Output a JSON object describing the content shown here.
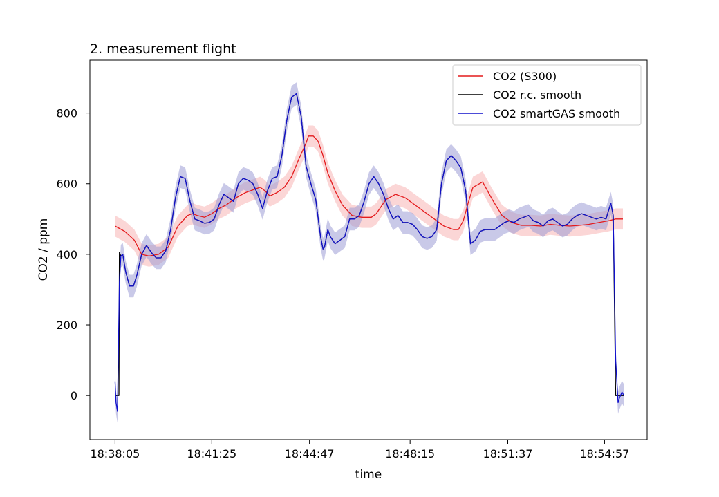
{
  "chart_data": {
    "type": "line",
    "title": "2. measurement flight",
    "xlabel": "time",
    "ylabel": "CO2 / ppm",
    "x_ticks": [
      "18:38:05",
      "18:41:25",
      "18:44:47",
      "18:48:15",
      "18:51:37",
      "18:54:57"
    ],
    "x_tick_seconds": [
      0,
      200,
      402,
      610,
      812,
      1012
    ],
    "xlim": [
      -52,
      1100
    ],
    "y_ticks": [
      0,
      200,
      400,
      600,
      800
    ],
    "ylim": [
      -125,
      950
    ],
    "grid": false,
    "legend_position": "top-right",
    "legend": [
      "CO2 (S300)",
      "CO2 r.c. smooth",
      "CO2 smartGAS smooth"
    ],
    "x_unit_note": "x values are seconds after 18:38:05",
    "series": [
      {
        "name": "CO2 (S300)",
        "color": "#e41a1c",
        "band_color": "#f8b4b4",
        "band_halfwidth": 30,
        "x": [
          0,
          20,
          40,
          55,
          70,
          90,
          110,
          130,
          150,
          160,
          170,
          185,
          200,
          215,
          230,
          250,
          270,
          290,
          300,
          310,
          320,
          335,
          350,
          365,
          380,
          395,
          400,
          410,
          420,
          430,
          440,
          455,
          470,
          490,
          510,
          530,
          540,
          550,
          560,
          580,
          600,
          610,
          620,
          640,
          660,
          680,
          700,
          710,
          720,
          730,
          740,
          760,
          780,
          800,
          820,
          840,
          860,
          880,
          900,
          920,
          940,
          960,
          980,
          1000,
          1020,
          1035,
          1050
        ],
        "values": [
          480,
          465,
          440,
          400,
          395,
          400,
          420,
          480,
          510,
          515,
          510,
          505,
          515,
          530,
          540,
          560,
          575,
          585,
          590,
          580,
          565,
          575,
          590,
          620,
          670,
          715,
          735,
          735,
          720,
          680,
          630,
          580,
          540,
          510,
          505,
          505,
          515,
          535,
          555,
          570,
          560,
          550,
          540,
          520,
          500,
          480,
          470,
          470,
          495,
          545,
          590,
          605,
          555,
          510,
          490,
          482,
          482,
          480,
          485,
          482,
          480,
          482,
          485,
          490,
          495,
          500,
          500
        ]
      },
      {
        "name": "CO2 r.c. smooth",
        "color": "#000000",
        "band_color": null,
        "band_halfwidth": 0,
        "x": [
          0,
          2,
          8,
          9,
          12,
          16,
          22,
          30,
          38,
          45,
          55,
          65,
          75,
          85,
          95,
          105,
          115,
          125,
          135,
          145,
          155,
          165,
          175,
          185,
          195,
          205,
          215,
          225,
          235,
          245,
          255,
          265,
          275,
          285,
          295,
          305,
          315,
          325,
          335,
          345,
          355,
          365,
          375,
          385,
          395,
          405,
          415,
          425,
          430,
          433,
          440,
          445,
          455,
          465,
          475,
          485,
          495,
          505,
          515,
          525,
          535,
          545,
          555,
          565,
          575,
          585,
          595,
          605,
          615,
          625,
          635,
          645,
          655,
          665,
          675,
          685,
          695,
          705,
          715,
          725,
          735,
          745,
          755,
          765,
          775,
          785,
          795,
          805,
          815,
          825,
          835,
          845,
          855,
          865,
          875,
          885,
          895,
          905,
          915,
          925,
          935,
          945,
          955,
          965,
          975,
          985,
          995,
          1005,
          1015,
          1025,
          1030,
          1035,
          1040,
          1042,
          1045,
          1048,
          1052
        ],
        "values": [
          0,
          0,
          0,
          405,
          395,
          400,
          350,
          310,
          310,
          340,
          400,
          425,
          405,
          390,
          390,
          410,
          470,
          560,
          620,
          615,
          550,
          500,
          495,
          488,
          490,
          500,
          540,
          570,
          560,
          550,
          600,
          615,
          610,
          600,
          570,
          530,
          580,
          615,
          620,
          680,
          780,
          845,
          855,
          790,
          650,
          600,
          555,
          450,
          415,
          420,
          470,
          450,
          430,
          440,
          450,
          500,
          500,
          510,
          550,
          600,
          620,
          600,
          570,
          530,
          500,
          510,
          490,
          490,
          485,
          470,
          450,
          445,
          450,
          470,
          600,
          665,
          680,
          665,
          645,
          580,
          430,
          440,
          465,
          470,
          470,
          470,
          480,
          490,
          495,
          490,
          500,
          505,
          510,
          495,
          490,
          480,
          495,
          500,
          490,
          480,
          485,
          500,
          510,
          515,
          510,
          505,
          500,
          505,
          500,
          545,
          510,
          0,
          0,
          0,
          0,
          0,
          0
        ]
      },
      {
        "name": "CO2 smartGAS smooth",
        "color": "#1010cc",
        "band_color": "#9d9dd6",
        "band_halfwidth": 32,
        "x": [
          0,
          2,
          5,
          9,
          12,
          16,
          22,
          30,
          38,
          45,
          55,
          65,
          75,
          85,
          95,
          105,
          115,
          125,
          135,
          145,
          155,
          165,
          175,
          185,
          195,
          205,
          215,
          225,
          235,
          245,
          255,
          265,
          275,
          285,
          295,
          305,
          315,
          325,
          335,
          345,
          355,
          365,
          375,
          385,
          395,
          405,
          415,
          425,
          430,
          433,
          440,
          445,
          455,
          465,
          475,
          485,
          495,
          505,
          515,
          525,
          535,
          545,
          555,
          565,
          575,
          585,
          595,
          605,
          615,
          625,
          635,
          645,
          655,
          665,
          675,
          685,
          695,
          705,
          715,
          725,
          735,
          745,
          755,
          765,
          775,
          785,
          795,
          805,
          815,
          825,
          835,
          845,
          855,
          865,
          875,
          885,
          895,
          905,
          915,
          925,
          935,
          945,
          955,
          965,
          975,
          985,
          995,
          1005,
          1015,
          1025,
          1030,
          1035,
          1040,
          1042,
          1045,
          1048,
          1052
        ],
        "values": [
          40,
          -20,
          -45,
          320,
          395,
          400,
          350,
          310,
          310,
          340,
          400,
          425,
          405,
          390,
          390,
          410,
          470,
          560,
          620,
          615,
          550,
          500,
          495,
          488,
          490,
          500,
          540,
          570,
          560,
          550,
          600,
          615,
          610,
          600,
          570,
          530,
          580,
          615,
          620,
          680,
          780,
          845,
          855,
          790,
          650,
          600,
          555,
          450,
          415,
          420,
          470,
          450,
          430,
          440,
          450,
          500,
          500,
          510,
          550,
          600,
          620,
          600,
          570,
          530,
          500,
          510,
          490,
          490,
          485,
          470,
          450,
          445,
          450,
          470,
          600,
          665,
          680,
          665,
          645,
          580,
          430,
          440,
          465,
          470,
          470,
          470,
          480,
          490,
          495,
          490,
          500,
          505,
          510,
          495,
          490,
          480,
          495,
          500,
          490,
          480,
          485,
          500,
          510,
          515,
          510,
          505,
          500,
          505,
          500,
          545,
          510,
          100,
          -20,
          -10,
          0,
          10,
          0
        ]
      }
    ]
  }
}
